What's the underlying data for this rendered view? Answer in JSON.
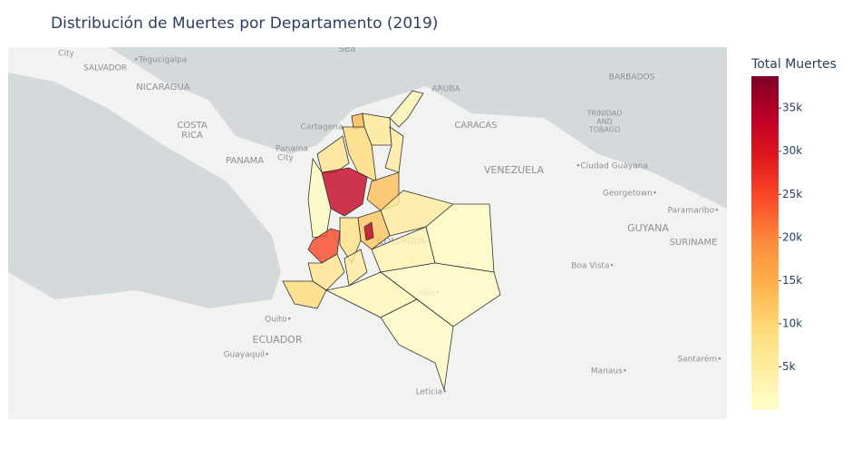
{
  "chart_data": {
    "type": "choropleth",
    "title": "Distribución de Muertes por Departamento (2019)",
    "colorbar_title": "Total Muertes",
    "colorscale": [
      "#ffffcc",
      "#ffeda0",
      "#fed976",
      "#feb24c",
      "#fd8d3c",
      "#fc4e2a",
      "#e31a1c",
      "#bd0026",
      "#800026"
    ],
    "zlim": [
      0,
      38700
    ],
    "zticks": [
      {
        "value": 5000,
        "label": "5k"
      },
      {
        "value": 10000,
        "label": "10k"
      },
      {
        "value": 15000,
        "label": "15k"
      },
      {
        "value": 20000,
        "label": "20k"
      },
      {
        "value": 25000,
        "label": "25k"
      },
      {
        "value": 30000,
        "label": "30k"
      },
      {
        "value": 35000,
        "label": "35k"
      }
    ],
    "values": [
      3000,
      14000,
      6000,
      5000,
      9000,
      7000,
      33000,
      1500,
      13000,
      5000,
      12000,
      34000,
      8000,
      25000,
      7000,
      9000,
      5000,
      3000,
      1000,
      2000,
      700,
      800
    ],
    "basemap_labels": [
      "City",
      "SALVADOR",
      "•Tegucigalpa",
      "NICARAGUA",
      "COSTA",
      "RICA",
      "PANAMA",
      "Panama",
      "City",
      "Cartagena",
      "ARUBA",
      "CARACAS",
      "VENEZUELA",
      "•Ciudad Guayana",
      "Georgetown•",
      "Paramaribo•",
      "GUYANA",
      "SURINAME",
      "BARBADOS",
      "TRINIDAD",
      "AND",
      "TOBAGO",
      "Boa Vista•",
      "Quito•",
      "ECUADOR",
      "Guayaquil•",
      "Manaus•",
      "Santarém•",
      "Leticia•",
      "Mitú•",
      "Sea",
      "COLOMBIA"
    ]
  }
}
